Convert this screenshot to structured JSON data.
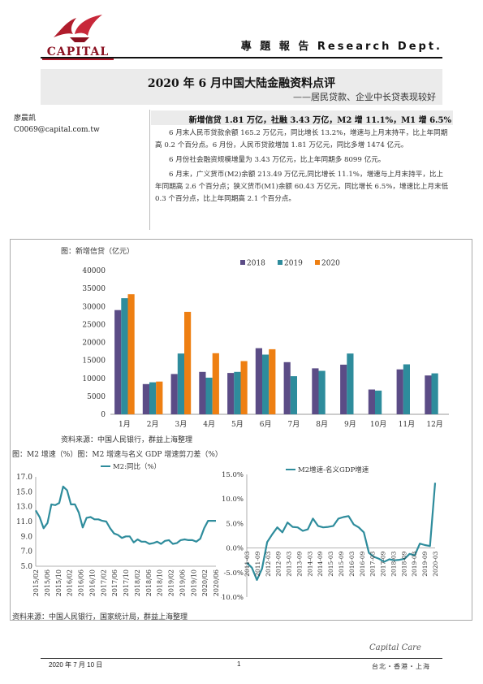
{
  "header": {
    "logo_text": "CAPITAL",
    "title": "專 題 報 告   Research Dept."
  },
  "report": {
    "title": "2020 年 6 月中国大陆金融资料点评",
    "subtitle": "——居民贷款、企业中长贷表现较好"
  },
  "author": {
    "name": "廖晨凯",
    "email": "C0069@capital.com.tw"
  },
  "summary": {
    "headline": "新增信贷 1.81 万亿，社融 3.43 万亿，M2 增 11.1%，M1 增 6.5%",
    "paragraphs": [
      "6 月末人民币贷款余额 165.2 万亿元，同比增长 13.2%，增速与上月末持平，比上年同期高 0.2 个百分点。6 月份，人民币贷款增加 1.81 万亿元，同比多增 1474 亿元。",
      "6 月份社会融资规模增量为 3.43 万亿元，比上年同期多 8099 亿元。",
      "6 月末，广义货币(M2)余额 213.49 万亿元,同比增长 11.1%，增速与上月末持平，比上年同期高 2.6 个百分点；狭义货币(M1)余额 60.43 万亿元，同比增长 6.5%，增速比上月末低 0.3 个百分点，比上年同期高 2.1 个百分点。"
    ]
  },
  "charts": {
    "loan_caption": "图：新增信贷（亿元）",
    "loan_source": "资料来源：中国人民银行，群益上海整理",
    "lower_caption": "图：M2 增速（%）图：M2 增速与名义 GDP 增速剪刀差（%）",
    "lower_source": "资料来源：中国人民银行，国家统计局，群益上海整理"
  },
  "chart_data": [
    {
      "type": "bar",
      "categories": [
        "1月",
        "2月",
        "3月",
        "4月",
        "5月",
        "6月",
        "7月",
        "8月",
        "9月",
        "10月",
        "11月",
        "12月"
      ],
      "series": [
        {
          "name": "2018",
          "color": "#5b4c86",
          "values": [
            29000,
            8400,
            11200,
            11800,
            11500,
            18400,
            14500,
            12800,
            13800,
            6900,
            12500,
            10800
          ]
        },
        {
          "name": "2019",
          "color": "#2e8c9c",
          "values": [
            32300,
            8900,
            16900,
            10200,
            11800,
            16600,
            10600,
            12100,
            16900,
            6600,
            13900,
            11400
          ]
        },
        {
          "name": "2020",
          "color": "#ee7f12",
          "values": [
            33400,
            9100,
            28500,
            17000,
            14800,
            18100,
            null,
            null,
            null,
            null,
            null,
            null
          ]
        }
      ],
      "ylim": [
        0,
        40000
      ],
      "yticks": [
        0,
        5000,
        10000,
        15000,
        20000,
        25000,
        30000,
        35000,
        40000
      ],
      "legend": "top-center",
      "grid": false
    },
    {
      "type": "line",
      "series": [
        {
          "name": "M2:同比（%）",
          "color": "#2e8c9c"
        }
      ],
      "x_tick_labels": [
        "2015/02",
        "2015/06",
        "2015/10",
        "2016/02",
        "2016/06",
        "2016/10",
        "2017/02",
        "2017/06",
        "2017/10",
        "2018/02",
        "2018/06",
        "2018/10",
        "2019/02",
        "2019/06",
        "2019/10",
        "2020/02",
        "2020/06"
      ],
      "values": [
        12.5,
        11.6,
        10.1,
        10.8,
        13.3,
        13.2,
        13.5,
        15.7,
        15.2,
        13.3,
        13.3,
        12.2,
        10.2,
        11.5,
        11.6,
        11.3,
        11.3,
        11.1,
        11.0,
        10.1,
        9.4,
        9.2,
        8.8,
        9.0,
        9.0,
        8.2,
        8.6,
        8.3,
        8.3,
        8.0,
        8.1,
        8.3,
        8.0,
        8.4,
        8.5,
        8.0,
        8.1,
        8.5,
        8.6,
        8.5,
        8.5,
        8.3,
        8.7,
        10.1,
        11.1,
        11.1,
        11.1
      ],
      "ylim": [
        5.0,
        17.0
      ],
      "yticks": [
        "5.0",
        "7.0",
        "9.0",
        "11.0",
        "13.0",
        "15.0",
        "17.0"
      ],
      "legend": "top-center"
    },
    {
      "type": "line",
      "series": [
        {
          "name": "M2增速-名义GDP增速",
          "color": "#2e8c9c"
        }
      ],
      "x_tick_labels": [
        "2011-03",
        "2011-09",
        "2012-03",
        "2012-09",
        "2013-03",
        "2013-09",
        "2014-03",
        "2014-09",
        "2015-03",
        "2015-09",
        "2016-03",
        "2016-09",
        "2017-03",
        "2017-09",
        "2018-03",
        "2018-09",
        "2019-03",
        "2019-09",
        "2020-03"
      ],
      "values": [
        -3.0,
        -4.0,
        -6.5,
        -4.2,
        1.2,
        2.8,
        4.2,
        3.2,
        5.2,
        4.3,
        4.2,
        3.5,
        3.8,
        6.0,
        4.5,
        4.2,
        4.3,
        4.5,
        6.0,
        6.3,
        6.5,
        4.8,
        4.2,
        3.2,
        -1.0,
        -1.8,
        -2.2,
        -2.8,
        -2.3,
        -2.5,
        -2.4,
        -2.2,
        -1.2,
        -1.5,
        0.9,
        0.6,
        0.4,
        13.3
      ],
      "ylim": [
        -10,
        15
      ],
      "yticks": [
        "-10.0%",
        "-5.0%",
        "0.0%",
        "5.0%",
        "10.0%",
        "15.0%"
      ],
      "legend": "top-center"
    }
  ],
  "footer": {
    "date": "2020 年 7 月 10 日",
    "page": "1",
    "brand": "Capital Care",
    "cities": "台北・香港・上海"
  }
}
